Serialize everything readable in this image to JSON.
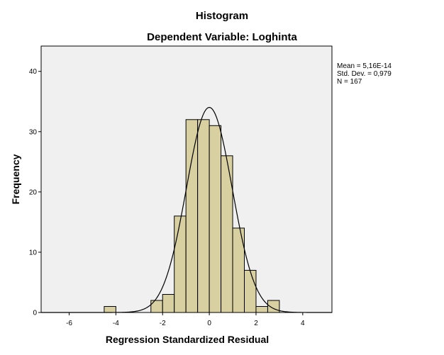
{
  "chart_data": {
    "type": "bar",
    "title": "Histogram",
    "subtitle": "Dependent Variable: Loghinta",
    "xlabel": "Regression Standardized Residual",
    "ylabel": "Frequency",
    "xlim": [
      -7.2,
      5.25
    ],
    "ylim": [
      0,
      44.2
    ],
    "x_ticks": [
      -6,
      -4,
      -2,
      0,
      2,
      4
    ],
    "y_ticks": [
      0,
      10,
      20,
      30,
      40
    ],
    "bin_width": 0.5,
    "bins": [
      {
        "start": -4.5,
        "count": 1
      },
      {
        "start": -2.5,
        "count": 2
      },
      {
        "start": -2.0,
        "count": 3
      },
      {
        "start": -1.5,
        "count": 16
      },
      {
        "start": -1.0,
        "count": 32
      },
      {
        "start": -0.5,
        "count": 32
      },
      {
        "start": 0.0,
        "count": 31
      },
      {
        "start": 0.5,
        "count": 26
      },
      {
        "start": 1.0,
        "count": 14
      },
      {
        "start": 1.5,
        "count": 7
      },
      {
        "start": 2.0,
        "count": 1
      },
      {
        "start": 2.5,
        "count": 2
      }
    ],
    "normal_curve": {
      "mean": 0,
      "sd": 0.979,
      "n": 167
    },
    "stats": {
      "mean": "Mean = 5,16E-14",
      "std_dev": "Std. Dev. = 0,979",
      "n": "N = 167"
    },
    "bar_color": "#d8d0a0",
    "plot_background": "#f0f0f0",
    "grid": false
  }
}
